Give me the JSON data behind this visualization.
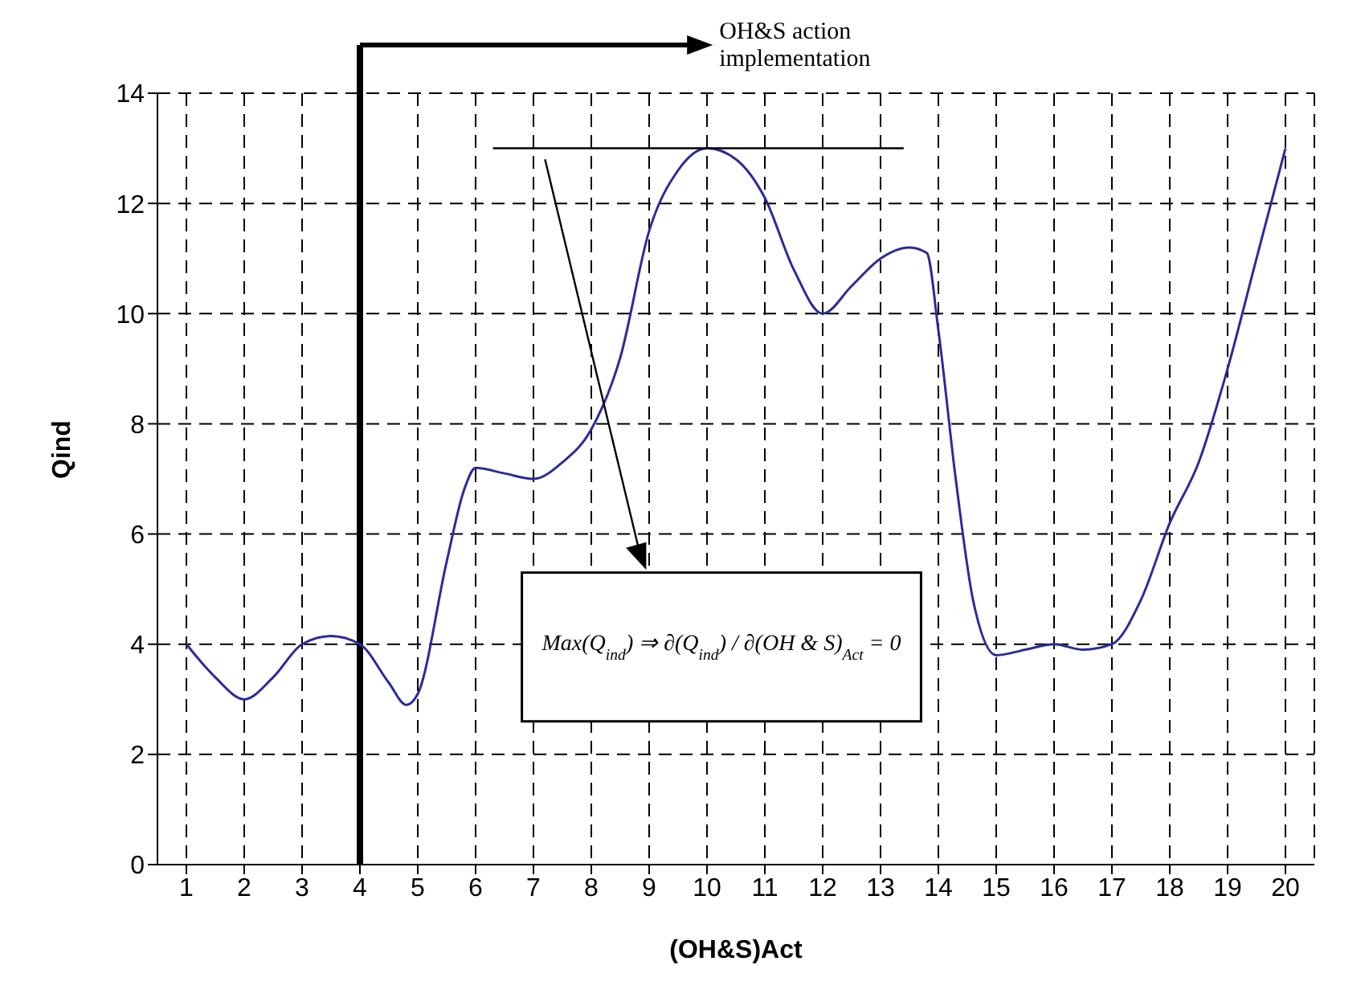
{
  "chart_data": {
    "type": "line",
    "xlabel": "(OH&S)Act",
    "ylabel": "Qind",
    "xlim": [
      0.5,
      20.5
    ],
    "xticks": [
      1,
      2,
      3,
      4,
      5,
      6,
      7,
      8,
      9,
      10,
      11,
      12,
      13,
      14,
      15,
      16,
      17,
      18,
      19,
      20
    ],
    "ylim": [
      0,
      14
    ],
    "yticks": [
      0,
      2,
      4,
      6,
      8,
      10,
      12,
      14
    ],
    "grid": true,
    "marker": "none",
    "line_style": "solid",
    "series": [
      {
        "color": "#2b2b9a",
        "x": [
          1,
          1.5,
          2,
          2.5,
          3,
          3.5,
          4,
          4.5,
          4.8,
          5,
          5.5,
          5.8,
          6,
          6.5,
          7,
          7.5,
          8,
          8.5,
          9,
          9.5,
          10,
          10.5,
          11,
          11.5,
          12,
          12.5,
          13,
          13.5,
          13.8,
          14,
          14.3,
          14.6,
          15,
          15.5,
          16,
          16.5,
          17,
          17.5,
          18,
          18.5,
          19,
          19.5,
          20
        ],
        "values": [
          4,
          3.4,
          3,
          3.4,
          4,
          4.15,
          4,
          3.3,
          2.9,
          3.1,
          5.5,
          6.8,
          7.2,
          7.1,
          7,
          7.3,
          7.9,
          9.2,
          11.5,
          12.6,
          13,
          12.8,
          12.1,
          10.8,
          10,
          10.5,
          11,
          11.2,
          11.1,
          9.7,
          7,
          4.8,
          3.8,
          3.9,
          4,
          3.9,
          4,
          4.8,
          6.2,
          7.3,
          9,
          11,
          13
        ]
      },
      {
        "type": "line",
        "color": "#000000",
        "x": [
          6.3,
          13.4
        ],
        "values": [
          13,
          13
        ]
      }
    ],
    "ref_lines": [
      {
        "axis": "x",
        "value": 4,
        "color": "#000000"
      }
    ],
    "annotations": [
      "OH&S action implementation",
      "Max(Q$_{ind}$) ⇒ ∂(Q$_{ind}$) / ∂(OH & S)$_{Act}$ = 0"
    ]
  }
}
